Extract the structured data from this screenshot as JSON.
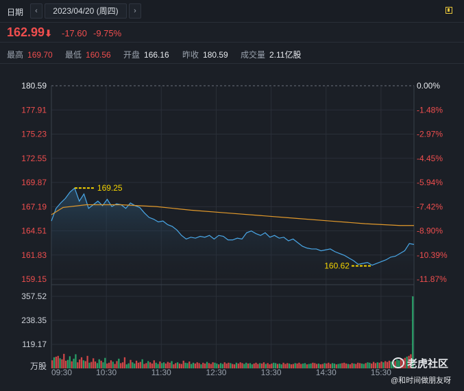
{
  "header": {
    "date_label": "日期",
    "prev_icon": "chevron-left-icon",
    "next_icon": "chevron-right-icon",
    "date_value": "2023/04/20 (周四)",
    "toggle_icon": "panel-toggle-icon"
  },
  "quote": {
    "price": "162.99",
    "arrow": "⬇",
    "change": "-17.60",
    "change_pct": "-9.75%"
  },
  "stats": {
    "high_label": "最高",
    "high": "169.70",
    "low_label": "最低",
    "low": "160.56",
    "open_label": "开盘",
    "open": "166.16",
    "prev_label": "昨收",
    "prev": "180.59",
    "vol_label": "成交量",
    "vol": "2.11亿股"
  },
  "colors": {
    "up": "#f04e4e",
    "down": "#2bb673",
    "line": "#4aa8e8",
    "avg": "#e39a2b",
    "annot": "#f5d400",
    "grid": "#2a2f38"
  },
  "watermark": {
    "brand": "老虎社区",
    "author": "@和时间做朋友呀"
  },
  "chart_data": {
    "type": "line",
    "price_axis_labels": [
      "180.59",
      "177.91",
      "175.23",
      "172.55",
      "169.87",
      "167.19",
      "164.51",
      "161.83",
      "159.15"
    ],
    "price_axis_values": [
      180.59,
      177.91,
      175.23,
      172.55,
      169.87,
      167.19,
      164.51,
      161.83,
      159.15
    ],
    "pct_axis_labels": [
      "0.00%",
      "-1.48%",
      "-2.97%",
      "-4.45%",
      "-5.94%",
      "-7.42%",
      "-8.90%",
      "-10.39%",
      "-11.87%"
    ],
    "ylim": [
      159.15,
      180.59
    ],
    "x_tick_labels": [
      "09:30",
      "10:30",
      "11:30",
      "12:30",
      "13:30",
      "14:30",
      "15:30"
    ],
    "prev_close": 180.59,
    "max_annotation": "169.25",
    "min_annotation": "160.62",
    "volume_axis_labels": [
      "357.52",
      "238.35",
      "119.17",
      "万股"
    ],
    "volume_max": 357.52,
    "price_series": [
      [
        0,
        165.6
      ],
      [
        4,
        167.0
      ],
      [
        8,
        167.6
      ],
      [
        12,
        168.1
      ],
      [
        16,
        168.8
      ],
      [
        20,
        169.25
      ],
      [
        24,
        167.8
      ],
      [
        28,
        168.6
      ],
      [
        32,
        167.0
      ],
      [
        36,
        167.4
      ],
      [
        40,
        167.8
      ],
      [
        44,
        167.3
      ],
      [
        48,
        168.0
      ],
      [
        52,
        167.2
      ],
      [
        56,
        167.5
      ],
      [
        60,
        167.4
      ],
      [
        64,
        167.0
      ],
      [
        68,
        167.6
      ],
      [
        72,
        167.3
      ],
      [
        76,
        167.1
      ],
      [
        80,
        166.5
      ],
      [
        84,
        166.0
      ],
      [
        88,
        165.8
      ],
      [
        92,
        165.5
      ],
      [
        96,
        165.6
      ],
      [
        100,
        165.2
      ],
      [
        104,
        165.0
      ],
      [
        108,
        164.6
      ],
      [
        112,
        164.0
      ],
      [
        116,
        163.6
      ],
      [
        120,
        163.8
      ],
      [
        124,
        163.7
      ],
      [
        128,
        163.9
      ],
      [
        132,
        163.8
      ],
      [
        136,
        164.0
      ],
      [
        140,
        163.6
      ],
      [
        144,
        164.0
      ],
      [
        148,
        163.9
      ],
      [
        152,
        163.5
      ],
      [
        156,
        163.5
      ],
      [
        160,
        163.7
      ],
      [
        164,
        163.6
      ],
      [
        168,
        164.3
      ],
      [
        172,
        164.5
      ],
      [
        176,
        164.2
      ],
      [
        180,
        164.0
      ],
      [
        184,
        164.3
      ],
      [
        188,
        163.8
      ],
      [
        192,
        164.0
      ],
      [
        196,
        163.7
      ],
      [
        200,
        163.8
      ],
      [
        204,
        163.4
      ],
      [
        208,
        163.6
      ],
      [
        212,
        163.2
      ],
      [
        216,
        162.8
      ],
      [
        220,
        162.6
      ],
      [
        224,
        162.5
      ],
      [
        228,
        162.5
      ],
      [
        232,
        162.3
      ],
      [
        236,
        162.4
      ],
      [
        240,
        162.5
      ],
      [
        244,
        162.2
      ],
      [
        248,
        162.0
      ],
      [
        252,
        161.8
      ],
      [
        256,
        161.5
      ],
      [
        260,
        161.2
      ],
      [
        264,
        160.8
      ],
      [
        268,
        160.9
      ],
      [
        272,
        161.0
      ],
      [
        276,
        160.7
      ],
      [
        280,
        160.9
      ],
      [
        284,
        161.1
      ],
      [
        288,
        161.3
      ],
      [
        292,
        161.6
      ],
      [
        296,
        161.7
      ],
      [
        300,
        162.0
      ],
      [
        304,
        162.3
      ],
      [
        308,
        163.1
      ],
      [
        312,
        163.0
      ]
    ],
    "avg_series": [
      [
        0,
        166.3
      ],
      [
        10,
        167.1
      ],
      [
        30,
        167.4
      ],
      [
        60,
        167.4
      ],
      [
        90,
        167.2
      ],
      [
        120,
        166.8
      ],
      [
        150,
        166.5
      ],
      [
        180,
        166.2
      ],
      [
        210,
        165.9
      ],
      [
        240,
        165.6
      ],
      [
        270,
        165.3
      ],
      [
        300,
        165.1
      ],
      [
        312,
        165.1
      ]
    ],
    "volume_bars": [
      40,
      55,
      58,
      62,
      50,
      45,
      72,
      38,
      42,
      60,
      35,
      48,
      70,
      30,
      44,
      55,
      40,
      36,
      62,
      28,
      32,
      50,
      34,
      26,
      45,
      38,
      30,
      52,
      24,
      28,
      40,
      33,
      22,
      36,
      48,
      26,
      30,
      55,
      20,
      25,
      42,
      30,
      24,
      38,
      28,
      32,
      45,
      22,
      26,
      36,
      30,
      24,
      40,
      28,
      22,
      34,
      26,
      30,
      24,
      32,
      28,
      36,
      20,
      26,
      30,
      24,
      22,
      38,
      28,
      26,
      34,
      22,
      28,
      24,
      30,
      26,
      20,
      28,
      24,
      32,
      26,
      22,
      30,
      28,
      24,
      20,
      26,
      22,
      30,
      24,
      28,
      26,
      22,
      20,
      28,
      24,
      30,
      26,
      22,
      28,
      24,
      26,
      20,
      24,
      28,
      22,
      26,
      24,
      30,
      22,
      26,
      20,
      24,
      28,
      26,
      22,
      24,
      20,
      28,
      22,
      26,
      24,
      20,
      22,
      26,
      24,
      28,
      22,
      24,
      26,
      20,
      22,
      24,
      28,
      26,
      22,
      24,
      20,
      22,
      26,
      24,
      28,
      22,
      26,
      24,
      20,
      22,
      24,
      26,
      28,
      24,
      22,
      20,
      26,
      24,
      22,
      28,
      26,
      24,
      22,
      26,
      30,
      28,
      24,
      32,
      26,
      30,
      28,
      34,
      30,
      36,
      32,
      38,
      34,
      40,
      36,
      44,
      40,
      48,
      46,
      52,
      58,
      62,
      70,
      360
    ]
  }
}
